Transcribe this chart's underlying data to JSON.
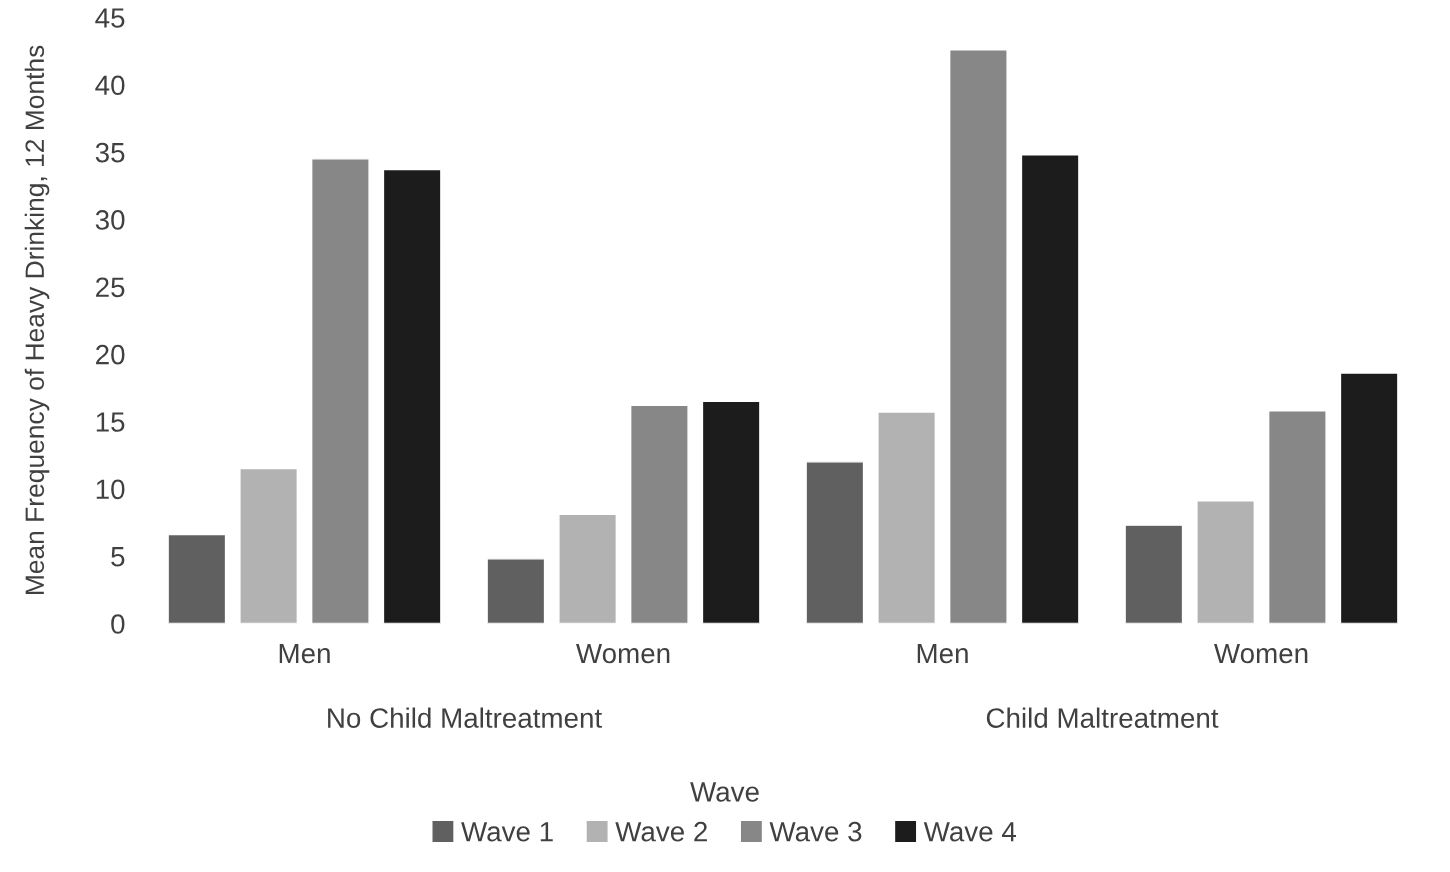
{
  "chart_data": {
    "type": "bar",
    "ylabel": "Mean Frequency of Heavy Drinking, 12 Months",
    "legend_title": "Wave",
    "categories": [
      "Men",
      "Women",
      "Men",
      "Women"
    ],
    "series": [
      {
        "name": "Wave 1",
        "color": "#606060",
        "values": [
          6.6,
          4.8,
          12.0,
          7.3
        ]
      },
      {
        "name": "Wave 2",
        "color": "#b2b2b2",
        "values": [
          11.5,
          8.1,
          15.7,
          9.1
        ]
      },
      {
        "name": "Wave 3",
        "color": "#878787",
        "values": [
          34.5,
          16.2,
          42.6,
          15.8
        ]
      },
      {
        "name": "Wave 4",
        "color": "#1c1c1c",
        "values": [
          33.7,
          16.5,
          34.8,
          18.6
        ]
      }
    ],
    "annotations": [
      "No Child Maltreatment",
      "Child Maltreatment"
    ],
    "ylim": [
      0,
      45
    ],
    "yticks": [
      0,
      5,
      10,
      15,
      20,
      25,
      30,
      35,
      40,
      45
    ],
    "grid": false,
    "legend": "bottom"
  }
}
